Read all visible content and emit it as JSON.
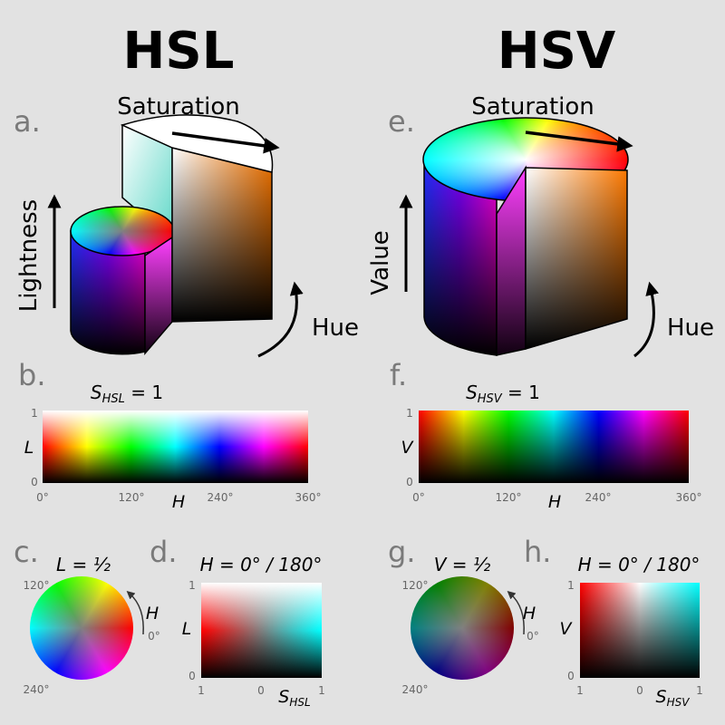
{
  "titles": [
    "HSL",
    "HSV"
  ],
  "panel_labels": [
    "a.",
    "b.",
    "c.",
    "d.",
    "e.",
    "f.",
    "g.",
    "h."
  ],
  "hsl": {
    "cylinder": {
      "saturation": "Saturation",
      "lightness": "Lightness",
      "hue": "Hue"
    },
    "strip": {
      "caption": {
        "var": "S",
        "sub": "HSL",
        "rest": " = 1"
      },
      "yticks": [
        "1",
        "0"
      ],
      "ylabel": "L",
      "xticks": [
        "0°",
        "120°",
        "240°",
        "360°"
      ],
      "xlabel": "H"
    },
    "wheel": {
      "caption": "L = ½",
      "arrow_label": "H",
      "ticks": [
        "120°",
        "0°",
        "240°"
      ]
    },
    "slice": {
      "caption": "H = 0° / 180°",
      "yticks": [
        "1",
        "0"
      ],
      "ylabel": "L",
      "xticks": [
        "1",
        "0",
        "1"
      ],
      "xlabel": {
        "var": "S",
        "sub": "HSL"
      }
    }
  },
  "hsv": {
    "cylinder": {
      "saturation": "Saturation",
      "value": "Value",
      "hue": "Hue"
    },
    "strip": {
      "caption": {
        "var": "S",
        "sub": "HSV",
        "rest": " = 1"
      },
      "yticks": [
        "1",
        "0"
      ],
      "ylabel": "V",
      "xticks": [
        "0°",
        "120°",
        "240°",
        "360°"
      ],
      "xlabel": "H"
    },
    "wheel": {
      "caption": "V = ½",
      "arrow_label": "H",
      "ticks": [
        "120°",
        "0°",
        "240°"
      ]
    },
    "slice": {
      "caption": "H = 0° / 180°",
      "yticks": [
        "1",
        "0"
      ],
      "ylabel": "V",
      "xticks": [
        "1",
        "0",
        "1"
      ],
      "xlabel": {
        "var": "S",
        "sub": "HSV"
      }
    }
  }
}
